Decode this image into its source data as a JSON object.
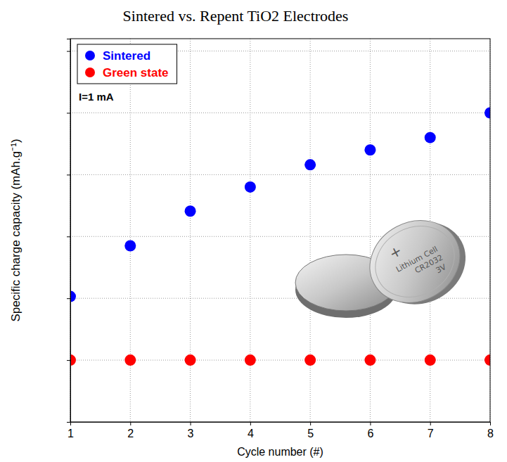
{
  "chart_data": {
    "type": "scatter",
    "title": "Sintered vs. Repent TiO2 Electrodes",
    "x_label": "Cycle number (#)",
    "y_label": "Specific charge capacity (mAh.g⁻¹)",
    "x": [
      1,
      2,
      3,
      4,
      5,
      6,
      7,
      8
    ],
    "series": [
      {
        "name": "Sintered",
        "color": "#0000ff",
        "marker": "circle",
        "values": [
          1.03,
          1.85,
          2.41,
          2.8,
          3.16,
          3.4,
          3.6,
          4.0
        ]
      },
      {
        "name": "Green state",
        "color": "#ff0000",
        "marker": "circle",
        "values": [
          0,
          0,
          0,
          0,
          0,
          0,
          0,
          0
        ]
      }
    ],
    "xlim": [
      1,
      8
    ],
    "xticks": [
      1,
      2,
      3,
      4,
      5,
      6,
      7,
      8
    ],
    "ylim": [
      -1,
      5.2
    ],
    "yticks": [
      0,
      1,
      2,
      3,
      4,
      5
    ],
    "grid": true,
    "legend": "upper left",
    "tick_labels": "x",
    "annotations": [
      "I=1 mA",
      "+",
      "Lithium Cell",
      "CR2032",
      "3V"
    ]
  }
}
